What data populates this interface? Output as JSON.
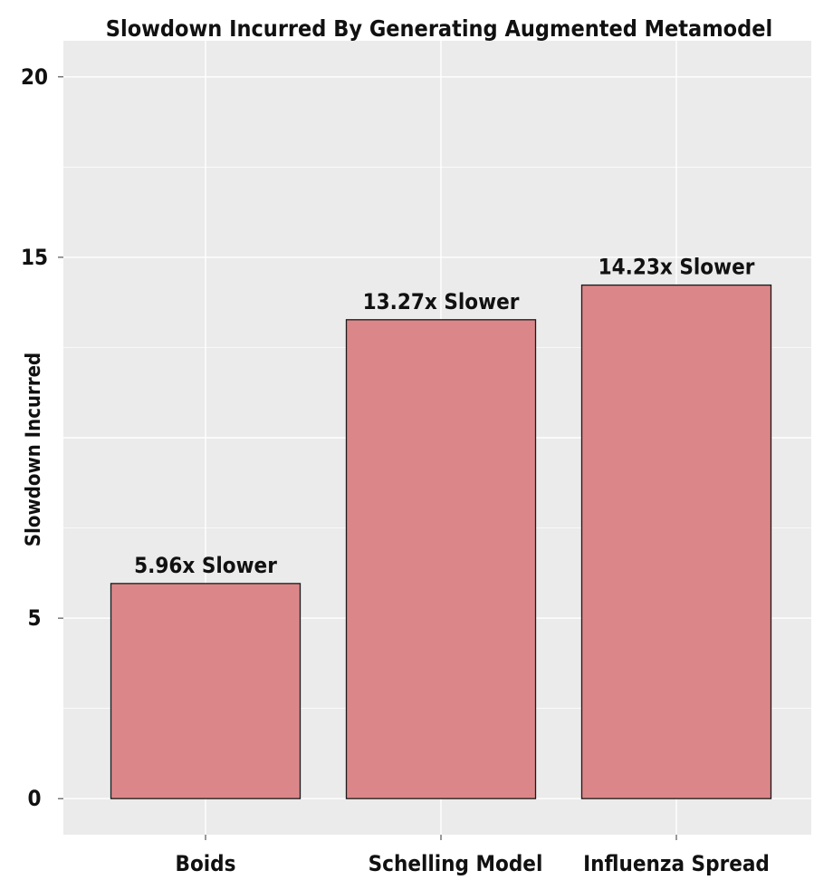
{
  "chart_data": {
    "type": "bar",
    "title": "Slowdown Incurred By Generating Augmented Metamodel",
    "xlabel": "",
    "ylabel": "Slowdown Incurred",
    "categories": [
      "Boids",
      "Schelling Model",
      "Influenza Spread"
    ],
    "values": [
      5.96,
      13.27,
      14.23
    ],
    "data_labels": [
      "5.96x Slower",
      "13.27x Slower",
      "14.23x Slower"
    ],
    "yticks": [
      0,
      5,
      15,
      20
    ],
    "ytick_labels": [
      "0",
      "5",
      "15",
      "20"
    ],
    "ylim": [
      -1,
      21
    ],
    "grid": true,
    "legend": "none",
    "colors": {
      "bar_fill": "#db8789",
      "bar_stroke": "#1a1a1a",
      "panel_bg": "#ebebeb",
      "grid": "#ffffff"
    }
  }
}
